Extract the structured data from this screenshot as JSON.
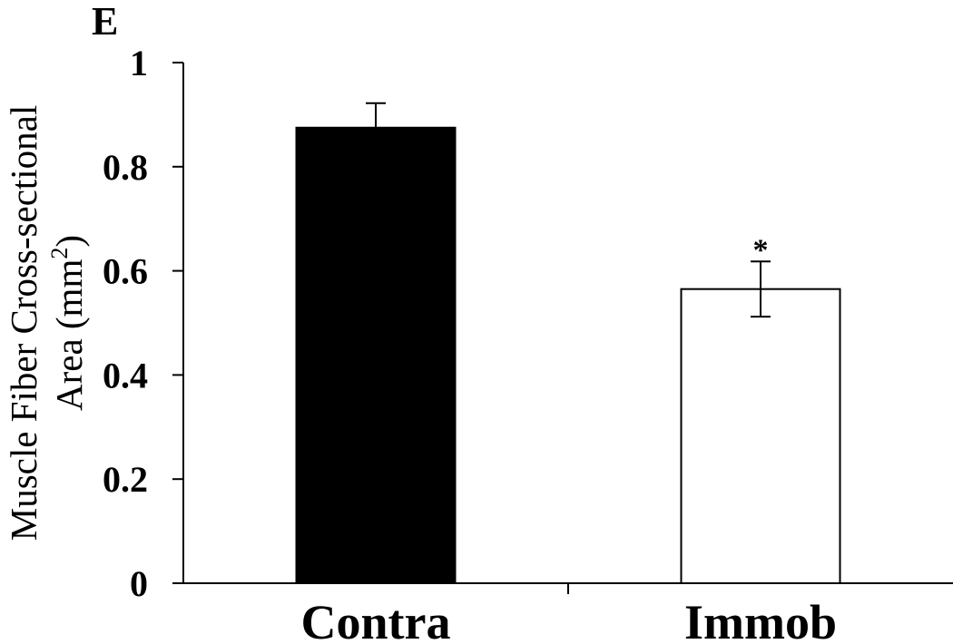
{
  "panel_label": "E",
  "chart_data": {
    "type": "bar",
    "categories": [
      "Contra",
      "Immob"
    ],
    "values": [
      0.875,
      0.565
    ],
    "errors": [
      0.047,
      0.053
    ],
    "bar_colors": [
      "#000000",
      "#ffffff"
    ],
    "bar_edge_color": "#000000",
    "annotations": [
      "",
      "*"
    ],
    "title": "",
    "xlabel": "",
    "ylabel_line1": "Muscle Fiber Cross-sectional",
    "ylabel_line2_prefix": "Area (mm",
    "ylabel_line2_superscript": "2",
    "ylabel_line2_suffix": ")",
    "ylim": [
      0,
      1
    ],
    "yticks": [
      0,
      0.2,
      0.4,
      0.6,
      0.8,
      1
    ],
    "ytick_labels": [
      "0",
      "0.2",
      "0.4",
      "0.6",
      "0.8",
      "1"
    ],
    "grid": false,
    "legend": "none"
  }
}
